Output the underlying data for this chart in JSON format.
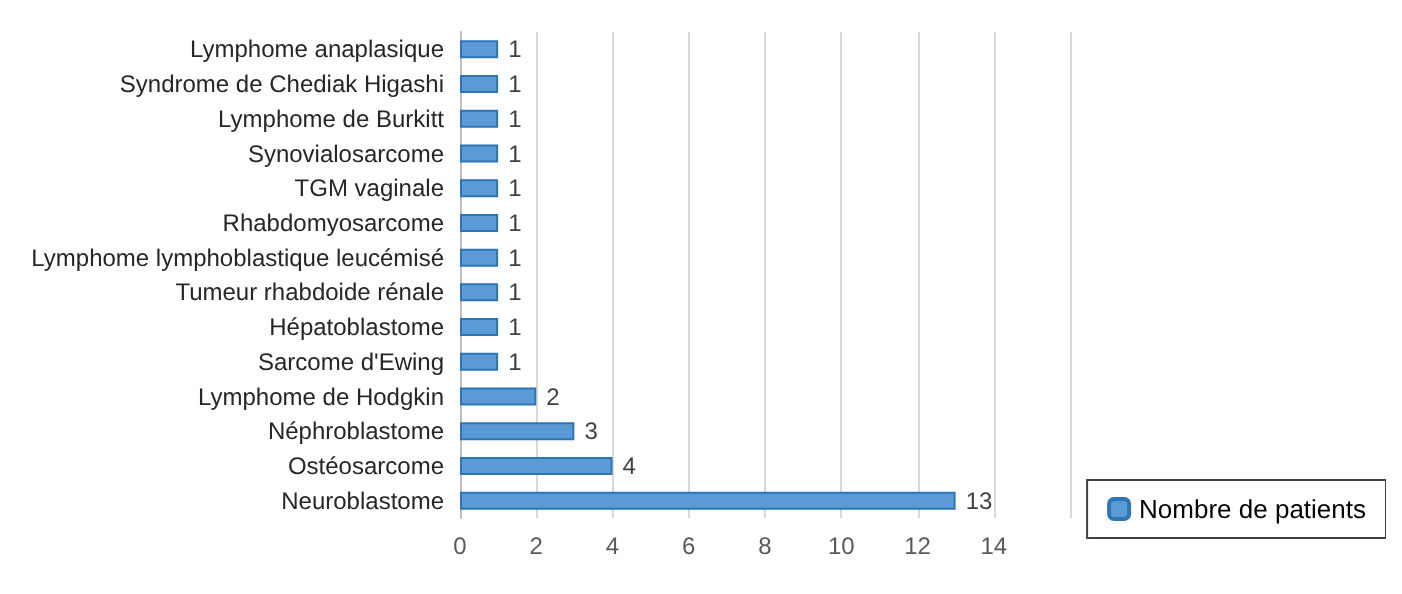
{
  "chart_data": {
    "type": "bar",
    "orientation": "horizontal",
    "categories": [
      "Lymphome anaplasique",
      "Syndrome de Chediak Higashi",
      "Lymphome de Burkitt",
      "Synovialosarcome",
      "TGM vaginale",
      "Rhabdomyosarcome",
      "Lymphome lymphoblastique leucémisé",
      "Tumeur rhabdoide rénale",
      "Hépatoblastome",
      "Sarcome d'Ewing",
      "Lymphome de Hodgkin",
      "Néphroblastome",
      "Ostéosarcome",
      "Neuroblastome"
    ],
    "series": [
      {
        "name": "Nombre de patients",
        "color": "#5b9bd5",
        "values": [
          1,
          1,
          1,
          1,
          1,
          1,
          1,
          1,
          1,
          1,
          2,
          3,
          4,
          13
        ]
      }
    ],
    "xlim": [
      0,
      16
    ],
    "xticks": [
      0,
      2,
      4,
      6,
      8,
      10,
      12,
      14,
      {
        "value": 16,
        "label": null
      }
    ],
    "grid": "x",
    "legend": "bottom right",
    "data_labels": true
  }
}
